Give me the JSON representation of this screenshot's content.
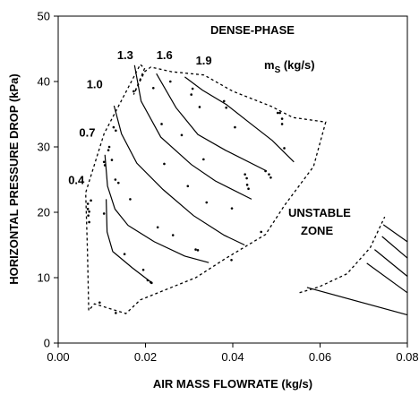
{
  "chart_data": {
    "type": "scatter",
    "title": "",
    "xlabel": "AIR MASS FLOWRATE (kg/s)",
    "ylabel": "HORIZONTAL PRESSURE DROP (kPa)",
    "xlim": [
      0,
      0.08
    ],
    "ylim": [
      0,
      50
    ],
    "x_ticks": [
      "0.00",
      "0.02",
      "0.04",
      "0.06",
      "0.08"
    ],
    "y_ticks": [
      "0",
      "10",
      "20",
      "30",
      "40",
      "50"
    ],
    "grid": false,
    "annotations": {
      "dense_phase": "DENSE-PHASE",
      "unstable_1": "UNSTABLE",
      "unstable_2": "ZONE",
      "ms_main": "m",
      "ms_sub": "S",
      "ms_unit": " (kg/s)"
    },
    "curve_labels": [
      {
        "label": "0.4",
        "x": 0.0023,
        "y": 24.3
      },
      {
        "label": "0.7",
        "x": 0.0048,
        "y": 31.6
      },
      {
        "label": "1.0",
        "x": 0.0065,
        "y": 39.0
      },
      {
        "label": "1.3",
        "x": 0.0135,
        "y": 43.4
      },
      {
        "label": "1.6",
        "x": 0.0225,
        "y": 43.4
      },
      {
        "label": "1.9",
        "x": 0.0315,
        "y": 42.6
      }
    ],
    "curves": [
      {
        "name": "0.4",
        "points": [
          [
            0.011,
            22
          ],
          [
            0.0112,
            17
          ],
          [
            0.0125,
            14
          ],
          [
            0.017,
            11.5
          ],
          [
            0.0213,
            9.3
          ]
        ]
      },
      {
        "name": "0.7",
        "points": [
          [
            0.0107,
            28.8
          ],
          [
            0.0113,
            24
          ],
          [
            0.013,
            20.5
          ],
          [
            0.016,
            18
          ],
          [
            0.022,
            15.5
          ],
          [
            0.029,
            13.3
          ],
          [
            0.0345,
            12.3
          ]
        ]
      },
      {
        "name": "1.0",
        "points": [
          [
            0.0128,
            36.3
          ],
          [
            0.0145,
            32
          ],
          [
            0.018,
            27.5
          ],
          [
            0.024,
            23.5
          ],
          [
            0.031,
            19.5
          ],
          [
            0.038,
            16.5
          ],
          [
            0.0427,
            15
          ]
        ]
      },
      {
        "name": "1.3",
        "points": [
          [
            0.0175,
            42.5
          ],
          [
            0.019,
            37
          ],
          [
            0.0235,
            31.5
          ],
          [
            0.0305,
            27.3
          ],
          [
            0.036,
            24.8
          ],
          [
            0.0443,
            22
          ]
        ]
      },
      {
        "name": "1.6",
        "points": [
          [
            0.0225,
            41.2
          ],
          [
            0.027,
            36
          ],
          [
            0.032,
            31.9
          ],
          [
            0.0383,
            29.5
          ],
          [
            0.0478,
            26.3
          ]
        ]
      },
      {
        "name": "1.9",
        "points": [
          [
            0.029,
            40.7
          ],
          [
            0.033,
            38.7
          ],
          [
            0.0385,
            36.5
          ],
          [
            0.044,
            33.6
          ],
          [
            0.049,
            31
          ],
          [
            0.054,
            27.7
          ]
        ]
      },
      {
        "name": "unstable-1",
        "points": [
          [
            0.0745,
            18.1
          ],
          [
            0.08,
            15.5
          ]
        ]
      },
      {
        "name": "unstable-2",
        "points": [
          [
            0.0742,
            16.3
          ],
          [
            0.08,
            13
          ]
        ]
      },
      {
        "name": "unstable-3",
        "points": [
          [
            0.0725,
            14.3
          ],
          [
            0.08,
            10.2
          ]
        ]
      },
      {
        "name": "unstable-4",
        "points": [
          [
            0.0707,
            12.2
          ],
          [
            0.08,
            7.7
          ]
        ]
      },
      {
        "name": "unstable-5",
        "points": [
          [
            0.057,
            8.5
          ],
          [
            0.08,
            4.3
          ]
        ]
      }
    ],
    "boundaries": [
      {
        "name": "dense-phase-boundary",
        "points": [
          [
            0.007,
            5
          ],
          [
            0.0067,
            14
          ],
          [
            0.0063,
            23
          ],
          [
            0.0105,
            32
          ],
          [
            0.0188,
            42.6
          ],
          [
            0.0198,
            42
          ],
          [
            0.0173,
            38
          ],
          [
            0.0198,
            41.5
          ],
          [
            0.0212,
            42.2
          ],
          [
            0.026,
            41.5
          ],
          [
            0.0334,
            41
          ],
          [
            0.04,
            38.5
          ],
          [
            0.0488,
            36.2
          ],
          [
            0.0538,
            34.5
          ],
          [
            0.0613,
            33.8
          ],
          [
            0.0585,
            27
          ],
          [
            0.0518,
            21
          ],
          [
            0.0475,
            16.6
          ],
          [
            0.0385,
            13
          ],
          [
            0.0315,
            10
          ],
          [
            0.0188,
            6.6
          ],
          [
            0.0155,
            4.5
          ],
          [
            0.0083,
            6
          ],
          [
            0.007,
            5
          ]
        ]
      },
      {
        "name": "unstable-boundary",
        "points": [
          [
            0.0553,
            7.7
          ],
          [
            0.0598,
            8.6
          ],
          [
            0.0662,
            10.6
          ],
          [
            0.0715,
            14.6
          ],
          [
            0.0748,
            19.3
          ]
        ]
      }
    ],
    "points": [
      [
        0.0068,
        21.3
      ],
      [
        0.0068,
        20.5
      ],
      [
        0.0069,
        19.5
      ],
      [
        0.0071,
        18.5
      ],
      [
        0.0071,
        20.1
      ],
      [
        0.0105,
        27.7
      ],
      [
        0.0107,
        27.2
      ],
      [
        0.0105,
        19.8
      ],
      [
        0.0117,
        30
      ],
      [
        0.0123,
        28
      ],
      [
        0.0127,
        33
      ],
      [
        0.0132,
        32.5
      ],
      [
        0.0131,
        25
      ],
      [
        0.0138,
        24.5
      ],
      [
        0.0152,
        13.6
      ],
      [
        0.0165,
        22
      ],
      [
        0.0173,
        38.5
      ],
      [
        0.0195,
        11.2
      ],
      [
        0.0205,
        9.6
      ],
      [
        0.0212,
        9.3
      ],
      [
        0.0218,
        39
      ],
      [
        0.0214,
        9.2
      ],
      [
        0.0228,
        17.7
      ],
      [
        0.0237,
        33.5
      ],
      [
        0.0243,
        27.4
      ],
      [
        0.0257,
        40
      ],
      [
        0.0263,
        16.5
      ],
      [
        0.0283,
        31.8
      ],
      [
        0.0297,
        24
      ],
      [
        0.0305,
        38
      ],
      [
        0.0308,
        38.9
      ],
      [
        0.0315,
        14.3
      ],
      [
        0.032,
        14.2
      ],
      [
        0.0324,
        36.1
      ],
      [
        0.0333,
        28.1
      ],
      [
        0.034,
        21.5
      ],
      [
        0.038,
        37
      ],
      [
        0.0385,
        36
      ],
      [
        0.0397,
        12.7
      ],
      [
        0.0398,
        20.6
      ],
      [
        0.0405,
        33
      ],
      [
        0.0428,
        25.8
      ],
      [
        0.0432,
        25.2
      ],
      [
        0.0433,
        24.2
      ],
      [
        0.0436,
        23.6
      ],
      [
        0.0465,
        17
      ],
      [
        0.0475,
        26.3
      ],
      [
        0.0483,
        25.8
      ],
      [
        0.0487,
        25.3
      ],
      [
        0.0503,
        35.2
      ],
      [
        0.0508,
        35.2
      ],
      [
        0.0513,
        34.3
      ],
      [
        0.0513,
        33.5
      ],
      [
        0.0518,
        29.8
      ],
      [
        0.0095,
        6.2
      ],
      [
        0.0132,
        4.6
      ],
      [
        0.0075,
        21.8
      ],
      [
        0.0115,
        29.5
      ]
    ]
  }
}
